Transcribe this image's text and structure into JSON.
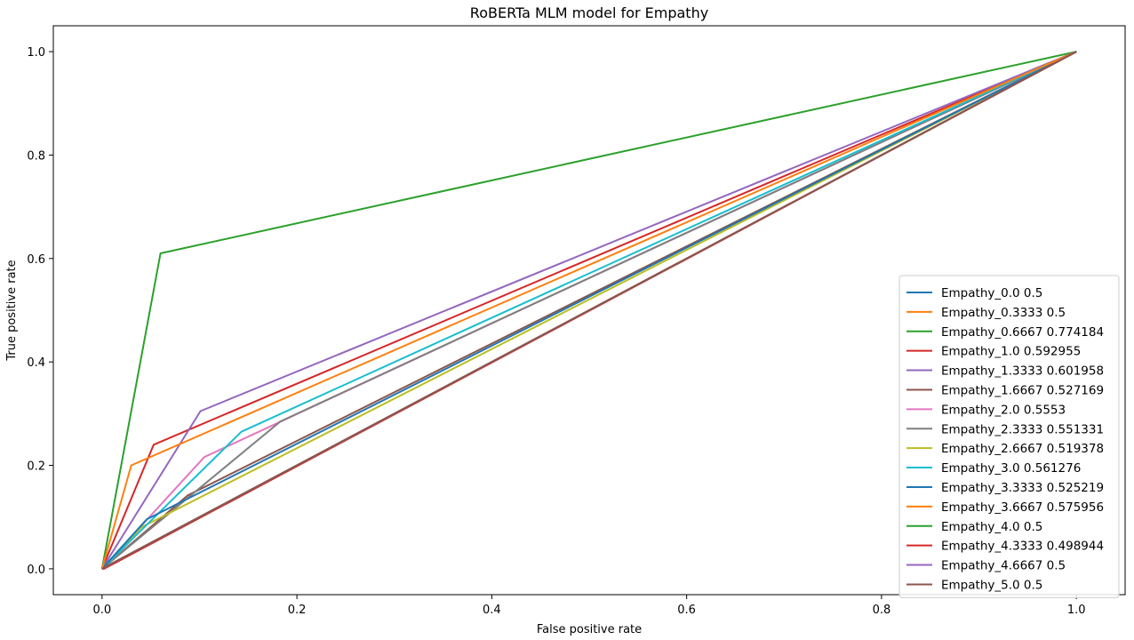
{
  "chart_data": {
    "type": "line",
    "title": "RoBERTa MLM model for Empathy",
    "xlabel": "False positive rate",
    "ylabel": "True positive rate",
    "xlim": [
      -0.05,
      1.05
    ],
    "ylim": [
      -0.05,
      1.05
    ],
    "xticks": [
      "0.0",
      "0.2",
      "0.4",
      "0.6",
      "0.8",
      "1.0"
    ],
    "yticks": [
      "0.0",
      "0.2",
      "0.4",
      "0.6",
      "0.8",
      "1.0"
    ],
    "xtick_values": [
      0,
      0.2,
      0.4,
      0.6,
      0.8,
      1.0
    ],
    "ytick_values": [
      0,
      0.2,
      0.4,
      0.6,
      0.8,
      1.0
    ],
    "grid": false,
    "legend_position": "lower-right",
    "series": [
      {
        "name": "Empathy_0.0 0.5",
        "color": "#1f77b4",
        "points": [
          [
            0,
            0
          ],
          [
            1,
            1
          ]
        ]
      },
      {
        "name": "Empathy_0.3333 0.5",
        "color": "#ff7f0e",
        "points": [
          [
            0,
            0
          ],
          [
            1,
            1
          ]
        ]
      },
      {
        "name": "Empathy_0.6667 0.774184",
        "color": "#2ca02c",
        "points": [
          [
            0,
            0
          ],
          [
            0.06,
            0.61
          ],
          [
            1,
            1
          ]
        ]
      },
      {
        "name": "Empathy_1.0 0.592955",
        "color": "#d62728",
        "points": [
          [
            0,
            0
          ],
          [
            0.053,
            0.24
          ],
          [
            1,
            1
          ]
        ]
      },
      {
        "name": "Empathy_1.3333 0.601958",
        "color": "#9467bd",
        "points": [
          [
            0,
            0
          ],
          [
            0.101,
            0.305
          ],
          [
            1,
            1
          ]
        ]
      },
      {
        "name": "Empathy_1.6667 0.527169",
        "color": "#8c564b",
        "points": [
          [
            0,
            0
          ],
          [
            0.088,
            0.142
          ],
          [
            1,
            1
          ]
        ]
      },
      {
        "name": "Empathy_2.0 0.5553",
        "color": "#e377c2",
        "points": [
          [
            0,
            0
          ],
          [
            0.105,
            0.216
          ],
          [
            1,
            1
          ]
        ]
      },
      {
        "name": "Empathy_2.3333 0.551331",
        "color": "#7f7f7f",
        "points": [
          [
            0,
            0
          ],
          [
            0.183,
            0.285
          ],
          [
            1,
            1
          ]
        ]
      },
      {
        "name": "Empathy_2.6667 0.519378",
        "color": "#bcbd22",
        "points": [
          [
            0,
            0
          ],
          [
            0.04,
            0.08
          ],
          [
            1,
            1
          ]
        ]
      },
      {
        "name": "Empathy_3.0 0.561276",
        "color": "#17becf",
        "points": [
          [
            0,
            0
          ],
          [
            0.143,
            0.265
          ],
          [
            1,
            1
          ]
        ]
      },
      {
        "name": "Empathy_3.3333 0.525219",
        "color": "#1f77b4",
        "points": [
          [
            0,
            0
          ],
          [
            0.046,
            0.096
          ],
          [
            1,
            1
          ]
        ]
      },
      {
        "name": "Empathy_3.6667 0.575956",
        "color": "#ff7f0e",
        "points": [
          [
            0,
            0
          ],
          [
            0.03,
            0.2
          ],
          [
            1,
            1
          ]
        ]
      },
      {
        "name": "Empathy_4.0 0.5",
        "color": "#2ca02c",
        "points": [
          [
            0,
            0
          ],
          [
            1,
            1
          ]
        ]
      },
      {
        "name": "Empathy_4.3333 0.498944",
        "color": "#d62728",
        "points": [
          [
            0,
            0
          ],
          [
            0.002,
            0.0
          ],
          [
            1,
            1
          ]
        ]
      },
      {
        "name": "Empathy_4.6667 0.5",
        "color": "#9467bd",
        "points": [
          [
            0,
            0
          ],
          [
            1,
            1
          ]
        ]
      },
      {
        "name": "Empathy_5.0 0.5",
        "color": "#8c564b",
        "points": [
          [
            0,
            0
          ],
          [
            1,
            1
          ]
        ]
      }
    ]
  }
}
